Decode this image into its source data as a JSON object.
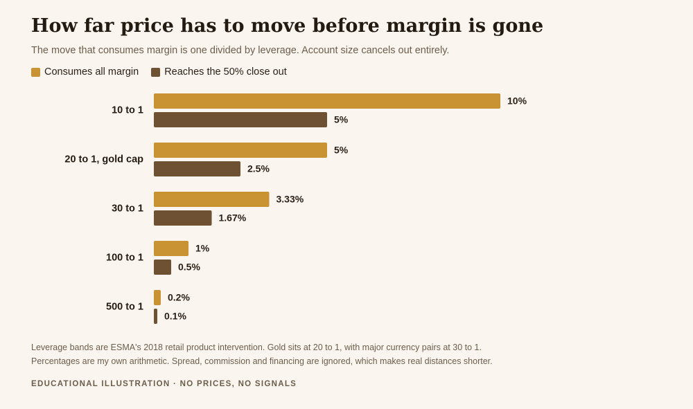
{
  "header": {
    "title": "How far price has to move before margin is gone",
    "subtitle": "The move that consumes margin is one divided by leverage. Account size cancels out entirely."
  },
  "legend": {
    "items": [
      {
        "label": "Consumes all margin",
        "color": "#c99232"
      },
      {
        "label": "Reaches the 50% close out",
        "color": "#6e5033"
      }
    ]
  },
  "chart_data": {
    "type": "bar",
    "orientation": "horizontal",
    "categories": [
      "10 to 1",
      "20 to 1, gold cap",
      "30 to 1",
      "100 to 1",
      "500 to 1"
    ],
    "series": [
      {
        "name": "Consumes all margin",
        "color": "#c99232",
        "values": [
          10,
          5,
          3.33,
          1,
          0.2
        ],
        "labels": [
          "10%",
          "5%",
          "3.33%",
          "1%",
          "0.2%"
        ]
      },
      {
        "name": "Reaches the 50% close out",
        "color": "#6e5033",
        "values": [
          5,
          2.5,
          1.67,
          0.5,
          0.1
        ],
        "labels": [
          "5%",
          "2.5%",
          "1.67%",
          "0.5%",
          "0.1%"
        ]
      }
    ],
    "xlim": [
      0,
      10
    ],
    "grid": false
  },
  "footer": {
    "note_line_1": "Leverage bands are ESMA's 2018 retail product intervention. Gold sits at 20 to 1, with major currency pairs at 30 to 1.",
    "note_line_2": "Percentages are my own arithmetic. Spread, commission and financing are ignored, which makes real distances shorter.",
    "badge": "EDUCATIONAL ILLUSTRATION · NO PRICES, NO SIGNALS"
  }
}
